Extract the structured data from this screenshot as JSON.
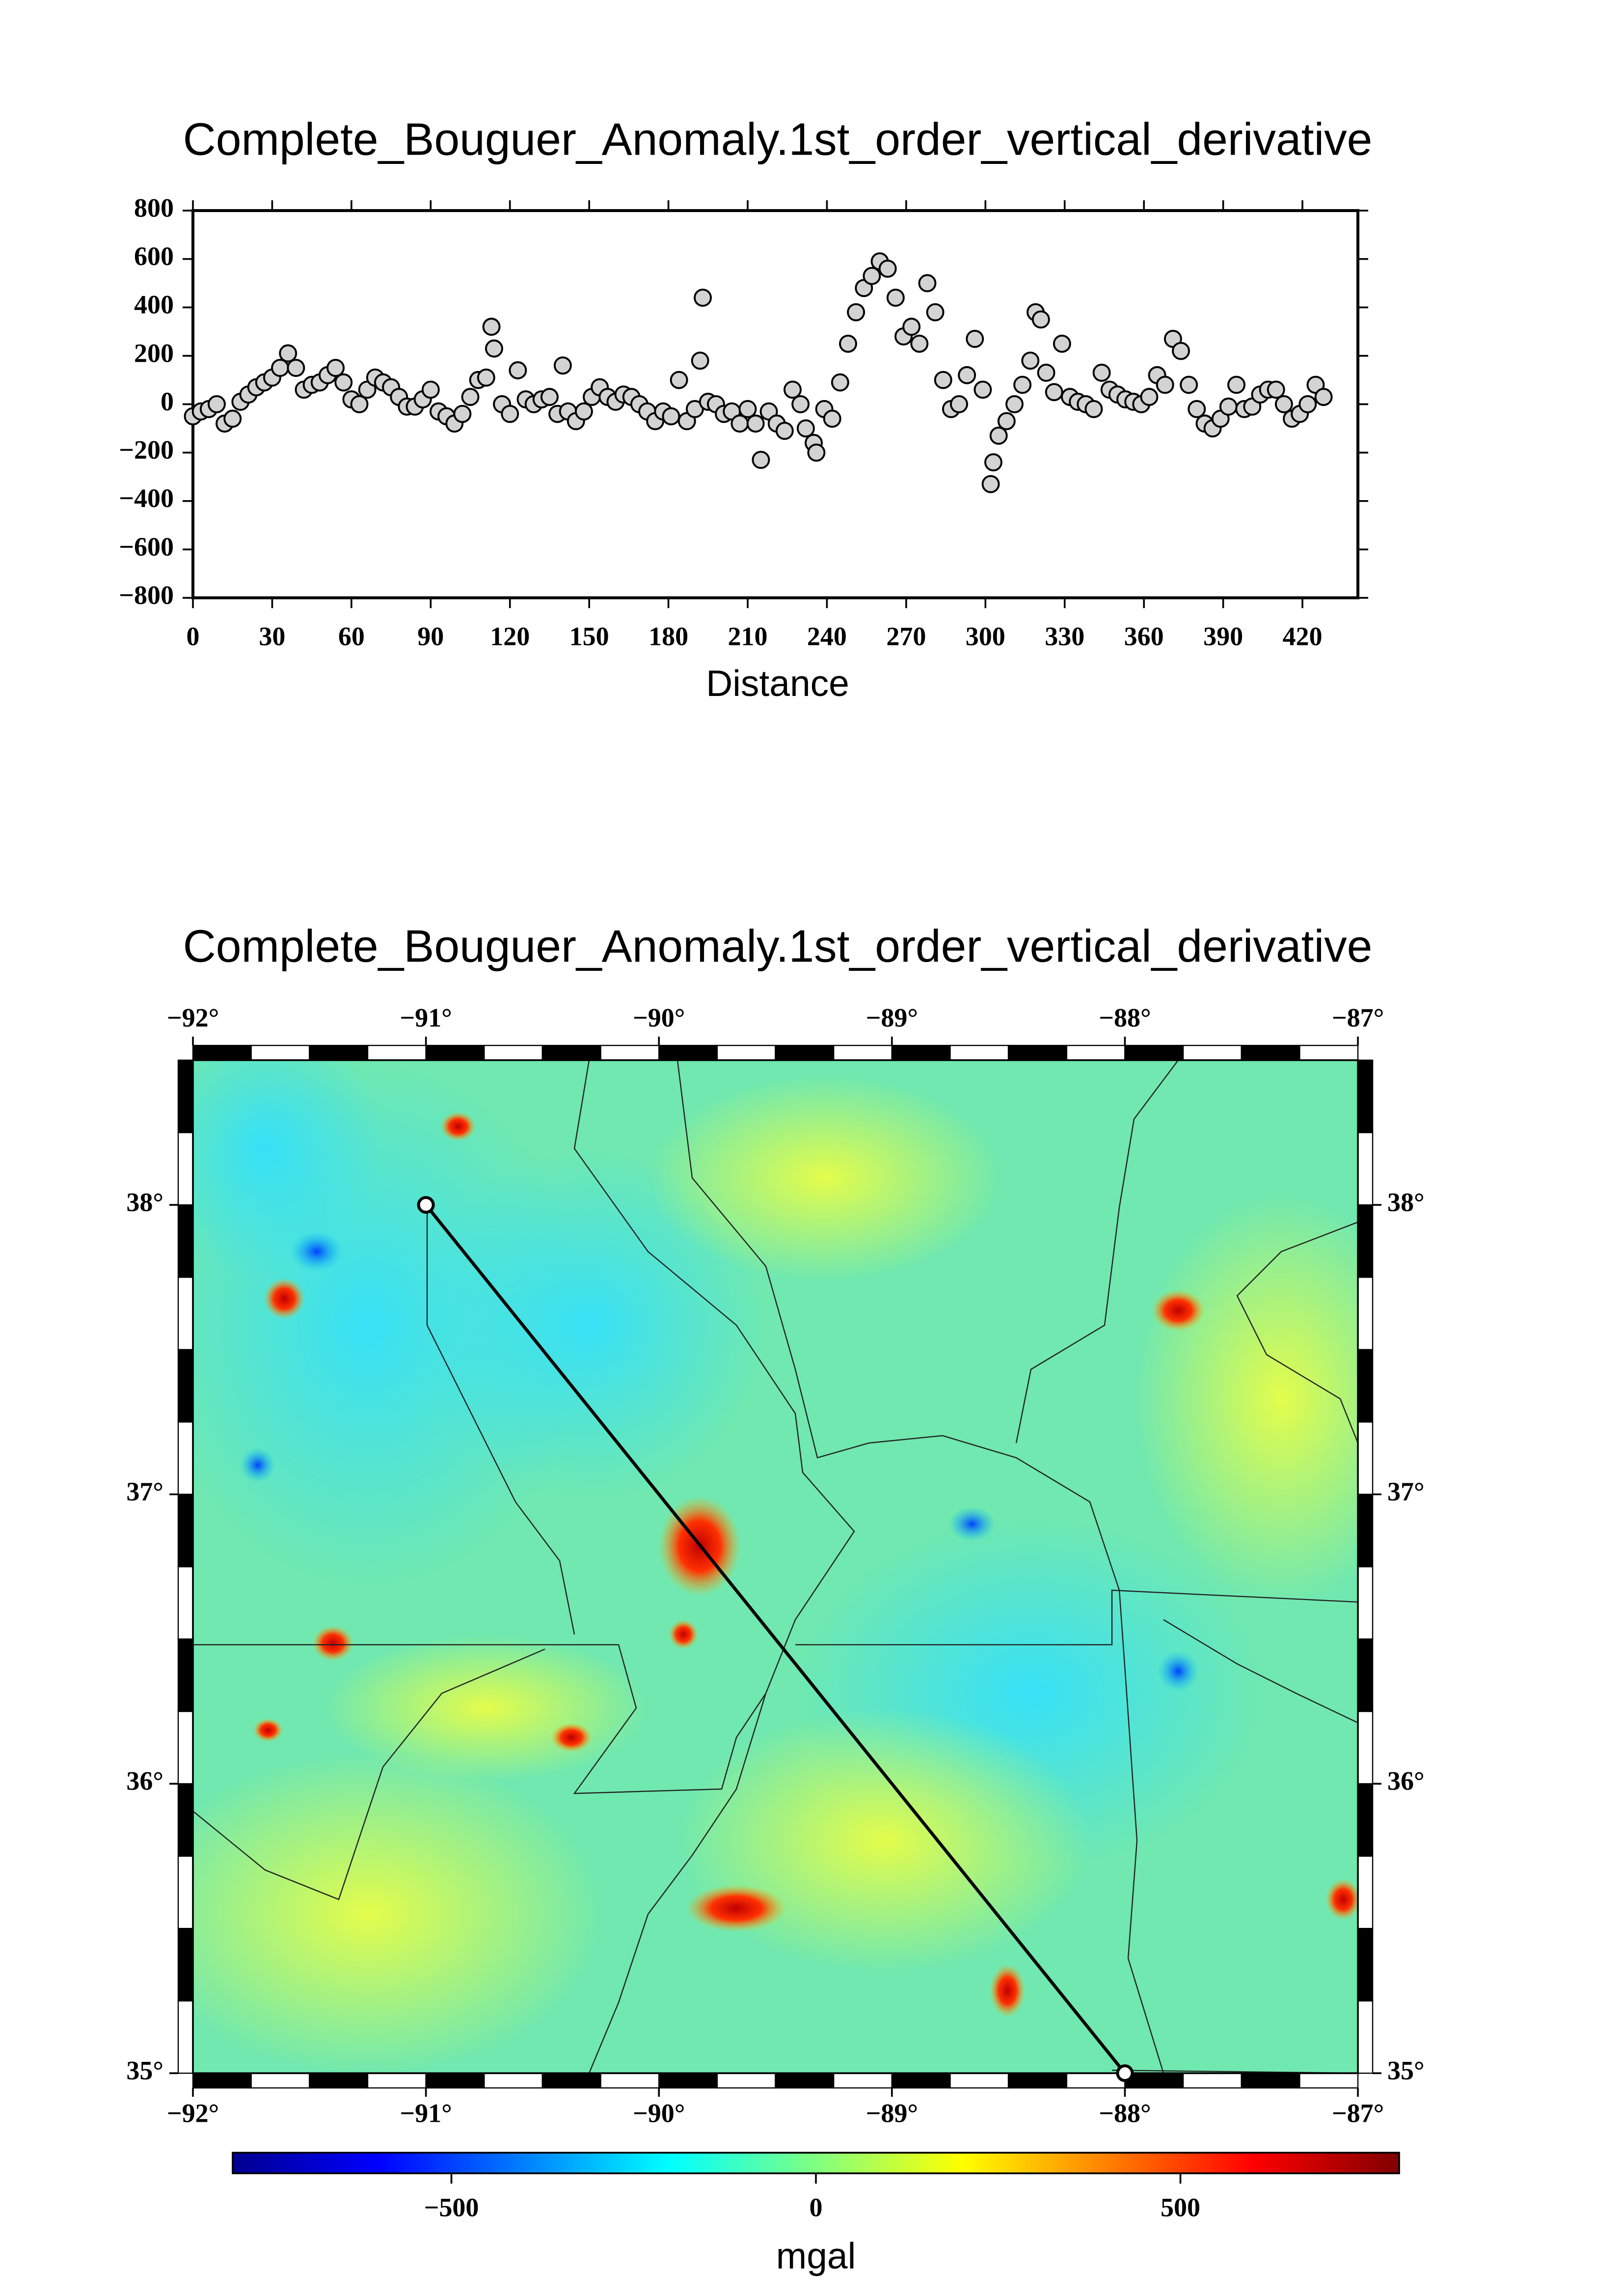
{
  "chart_data": [
    {
      "type": "scatter",
      "title": "Complete_Bouguer_Anomaly.1st_order_vertical_derivative",
      "xlabel": "Distance",
      "color": "#d3d3d3",
      "xlim": [
        0,
        441
      ],
      "ylim": [
        -800,
        800
      ],
      "xticks": [
        0,
        30,
        60,
        90,
        120,
        150,
        180,
        210,
        240,
        270,
        300,
        330,
        360,
        390,
        420
      ],
      "yticks": [
        {
          "value": -800,
          "label": "−800"
        },
        {
          "value": -600,
          "label": "−600"
        },
        {
          "value": -400,
          "label": "−400"
        },
        {
          "value": -200,
          "label": "−200"
        },
        0,
        200,
        400,
        600,
        800
      ],
      "x": [
        0,
        3,
        6,
        9,
        12,
        15,
        18,
        21,
        24,
        27,
        30,
        33,
        36,
        39,
        42,
        45,
        48,
        51,
        54,
        57,
        60,
        63,
        66,
        69,
        72,
        75,
        78,
        81,
        84,
        87,
        90,
        93,
        96,
        99,
        102,
        105,
        108,
        111,
        113,
        114,
        117,
        120,
        123,
        126,
        129,
        132,
        135,
        138,
        140,
        142,
        145,
        148,
        151,
        154,
        157,
        160,
        163,
        166,
        169,
        172,
        175,
        178,
        181,
        184,
        187,
        190,
        192,
        193,
        195,
        198,
        201,
        204,
        207,
        210,
        213,
        215,
        218,
        221,
        224,
        227,
        230,
        232,
        235,
        236,
        239,
        242,
        245,
        248,
        251,
        254,
        257,
        260,
        263,
        266,
        269,
        272,
        275,
        278,
        281,
        284,
        287,
        290,
        293,
        296,
        299,
        302,
        303,
        305,
        308,
        311,
        314,
        317,
        319,
        321,
        323,
        326,
        329,
        332,
        335,
        338,
        341,
        344,
        347,
        350,
        353,
        356,
        359,
        362,
        365,
        368,
        371,
        374,
        377,
        380,
        383,
        386,
        389,
        392,
        395,
        398,
        401,
        404,
        407,
        410,
        413,
        416,
        419,
        422,
        425,
        428
      ],
      "values": [
        -50,
        -30,
        -20,
        0,
        -80,
        -60,
        10,
        40,
        70,
        90,
        110,
        150,
        210,
        150,
        60,
        80,
        90,
        120,
        150,
        90,
        20,
        0,
        60,
        110,
        90,
        70,
        30,
        -10,
        -10,
        20,
        60,
        -30,
        -50,
        -80,
        -40,
        30,
        100,
        110,
        320,
        230,
        0,
        -40,
        140,
        20,
        0,
        20,
        30,
        -40,
        160,
        -30,
        -70,
        -30,
        30,
        70,
        30,
        10,
        40,
        30,
        0,
        -30,
        -70,
        -30,
        -50,
        100,
        -70,
        -20,
        180,
        440,
        10,
        0,
        -40,
        -30,
        -80,
        -20,
        -80,
        -230,
        -30,
        -80,
        -110,
        60,
        0,
        -100,
        -160,
        -200,
        -20,
        -60,
        90,
        250,
        380,
        480,
        530,
        590,
        560,
        440,
        280,
        320,
        250,
        500,
        380,
        100,
        -20,
        0,
        120,
        270,
        60,
        -330,
        -240,
        -130,
        -70,
        0,
        80,
        180,
        380,
        350,
        130,
        50,
        250,
        30,
        10,
        0,
        -20,
        130,
        60,
        40,
        20,
        10,
        0,
        30,
        120,
        80,
        270,
        220,
        80,
        -20,
        -80,
        -100,
        -60,
        -10,
        80,
        -20,
        -10,
        40,
        60,
        60,
        0,
        -60,
        -40,
        0,
        80,
        30
      ]
    },
    {
      "type": "map",
      "title": "Complete_Bouguer_Anomaly.1st_order_vertical_derivative",
      "xlim": [
        -92,
        -87
      ],
      "ylim": [
        35,
        38.5
      ],
      "xticks": [
        {
          "value": -92,
          "label": "−92°"
        },
        {
          "value": -91,
          "label": "−91°"
        },
        {
          "value": -90,
          "label": "−90°"
        },
        {
          "value": -89,
          "label": "−89°"
        },
        {
          "value": -88,
          "label": "−88°"
        },
        {
          "value": -87,
          "label": "−87°"
        }
      ],
      "yticks": [
        {
          "value": 35,
          "label": "35°"
        },
        {
          "value": 36,
          "label": "36°"
        },
        {
          "value": 37,
          "label": "37°"
        },
        {
          "value": 38,
          "label": "38°"
        }
      ],
      "profile": {
        "x": [
          -91,
          -88
        ],
        "y": [
          38,
          35
        ]
      },
      "colorbar": {
        "label": "mgal",
        "lim": [
          -800,
          800
        ],
        "ticks": [
          {
            "value": -500,
            "label": "−500"
          },
          0,
          500
        ],
        "colors": [
          "#00008f",
          "#0000ff",
          "#0080ff",
          "#00ffff",
          "#80ff80",
          "#ffff00",
          "#ff8000",
          "#ff0000",
          "#800000"
        ]
      }
    }
  ]
}
